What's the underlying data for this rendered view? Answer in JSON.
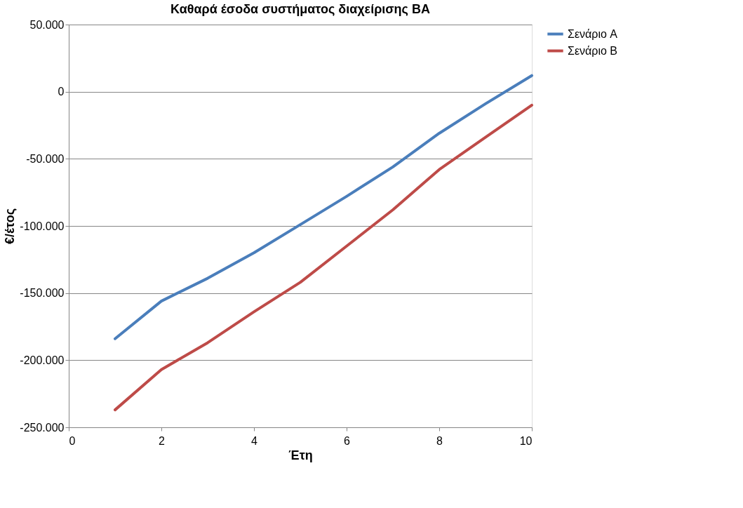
{
  "chart_data": {
    "type": "line",
    "title": "Καθαρά έσοδα συστήματος διαχείρισης ΒΑ",
    "xlabel": "Έτη",
    "ylabel": "€/έτος",
    "x": [
      1,
      2,
      3,
      4,
      5,
      6,
      7,
      8,
      9,
      10
    ],
    "series": [
      {
        "name": "Σενάριο A",
        "color": "#4a7ebb",
        "values": [
          -184000,
          -156000,
          -139000,
          -120000,
          -99000,
          -78000,
          -56000,
          -31000,
          -9000,
          12000
        ]
      },
      {
        "name": "Σενάριο B",
        "color": "#be4b48",
        "values": [
          -237000,
          -207000,
          -187000,
          -164000,
          -142000,
          -115000,
          -88000,
          -58000,
          -34000,
          -10000
        ]
      }
    ],
    "xlim": [
      0,
      10
    ],
    "xticks": [
      0,
      2,
      4,
      6,
      8,
      10
    ],
    "ylim": [
      -250000,
      50000
    ],
    "yticks": [
      {
        "value": -250000,
        "label": "-250.000"
      },
      {
        "value": -200000,
        "label": "-200.000"
      },
      {
        "value": -150000,
        "label": "-150.000"
      },
      {
        "value": -100000,
        "label": "-100.000"
      },
      {
        "value": -50000,
        "label": "-50.000"
      },
      {
        "value": 0,
        "label": "0"
      },
      {
        "value": 50000,
        "label": "50.000"
      }
    ],
    "grid": "y",
    "legend": "right",
    "marker": "none",
    "line_style": "solid"
  }
}
